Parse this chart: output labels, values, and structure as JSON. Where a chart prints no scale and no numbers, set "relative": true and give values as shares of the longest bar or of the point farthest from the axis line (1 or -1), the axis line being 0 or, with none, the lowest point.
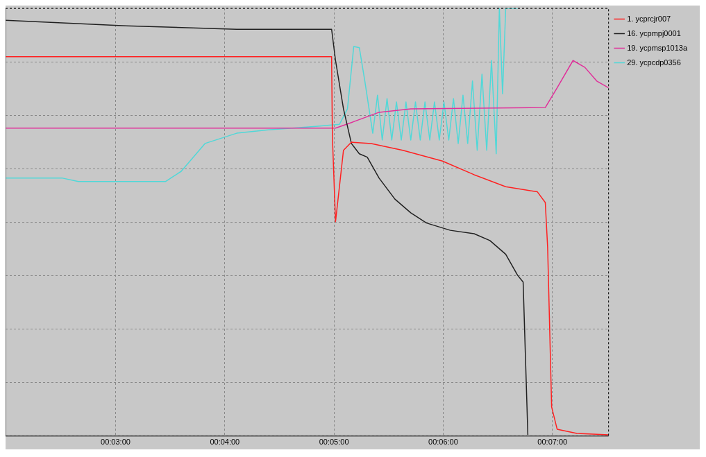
{
  "chart_data": {
    "type": "line",
    "relative": true,
    "grid": true,
    "legend": "top right",
    "marker": "none",
    "line_style": "solid",
    "xlim": [
      0.03321,
      0.12524
    ],
    "xticks": [
      {
        "value": 0.05,
        "label": "00:03:00"
      },
      {
        "value": 0.066667,
        "label": "00:04:00"
      },
      {
        "value": 0.083333,
        "label": "00:05:00"
      },
      {
        "value": 0.1,
        "label": "00:06:00"
      },
      {
        "value": 0.116667,
        "label": "00:07:00"
      }
    ],
    "series": [
      {
        "name": "1. ycprcjr007",
        "color": "#ff2020",
        "x": [
          0.03321,
          0.08297,
          0.08309,
          0.08357,
          0.08478,
          0.08599,
          0.08901,
          0.09384,
          0.09988,
          0.10471,
          0.10954,
          0.11437,
          0.11558,
          0.11594,
          0.11655,
          0.11739,
          0.12041,
          0.12524
        ],
        "values": [
          0.887,
          0.887,
          0.7,
          0.501,
          0.668,
          0.687,
          0.684,
          0.668,
          0.643,
          0.611,
          0.583,
          0.571,
          0.546,
          0.441,
          0.068,
          0.016,
          0.006,
          0.003
        ]
      },
      {
        "name": "16. ycpmpj0001",
        "color": "#202020",
        "x": [
          0.03321,
          0.05157,
          0.06848,
          0.08297,
          0.08357,
          0.08478,
          0.08599,
          0.0872,
          0.08841,
          0.09022,
          0.09263,
          0.09505,
          0.09746,
          0.10109,
          0.10471,
          0.10713,
          0.10954,
          0.11135,
          0.1122,
          0.11292
        ],
        "values": [
          0.972,
          0.959,
          0.951,
          0.951,
          0.878,
          0.765,
          0.684,
          0.66,
          0.652,
          0.603,
          0.554,
          0.522,
          0.498,
          0.481,
          0.473,
          0.457,
          0.425,
          0.376,
          0.36,
          0.003
        ]
      },
      {
        "name": "19. ycpmsp1013a",
        "color": "#e0309a",
        "x": [
          0.03321,
          0.08357,
          0.08599,
          0.09022,
          0.09505,
          0.11558,
          0.11739,
          0.11981,
          0.12162,
          0.12343,
          0.12524
        ],
        "values": [
          0.72,
          0.72,
          0.733,
          0.757,
          0.765,
          0.768,
          0.814,
          0.878,
          0.862,
          0.83,
          0.814
        ]
      },
      {
        "name": "29. ycpcdp0356",
        "color": "#50d8d8",
        "x": [
          0.03321,
          0.04191,
          0.04432,
          0.05761,
          0.06002,
          0.06365,
          0.06848,
          0.07331,
          0.08056,
          0.08418,
          0.08539,
          0.08635,
          0.0872,
          0.08804,
          0.08925,
          0.08998,
          0.0907,
          0.09143,
          0.09215,
          0.09287,
          0.0936,
          0.09432,
          0.09505,
          0.09577,
          0.0965,
          0.09722,
          0.09795,
          0.09867,
          0.0994,
          0.10012,
          0.10085,
          0.10157,
          0.10229,
          0.10302,
          0.10374,
          0.10447,
          0.10519,
          0.10592,
          0.10664,
          0.10737,
          0.10809,
          0.10857,
          0.10906,
          0.10954,
          0.11135
        ],
        "values": [
          0.603,
          0.603,
          0.595,
          0.595,
          0.619,
          0.684,
          0.708,
          0.716,
          0.724,
          0.729,
          0.765,
          0.911,
          0.908,
          0.83,
          0.708,
          0.797,
          0.692,
          0.789,
          0.692,
          0.781,
          0.692,
          0.781,
          0.692,
          0.781,
          0.692,
          0.781,
          0.692,
          0.781,
          0.692,
          0.781,
          0.692,
          0.789,
          0.684,
          0.797,
          0.684,
          0.83,
          0.668,
          0.846,
          0.668,
          0.878,
          0.66,
          1.0,
          0.8,
          1.0,
          1.0
        ]
      }
    ]
  }
}
